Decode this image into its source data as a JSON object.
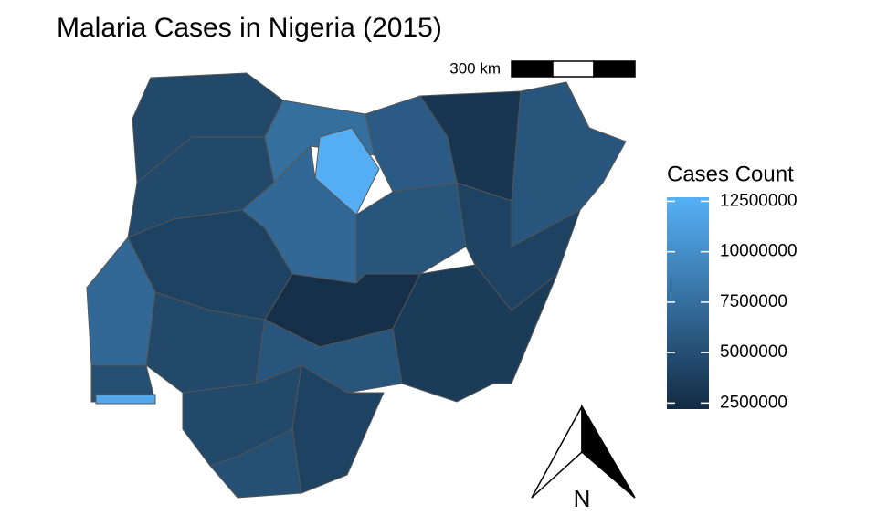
{
  "chart_data": {
    "type": "choropleth",
    "title": "Malaria Cases in Nigeria (2015)",
    "legend_title": "Cases Count",
    "legend_lim": [
      2200000,
      12700000
    ],
    "legend_ticks": [
      2500000,
      5000000,
      7500000,
      10000000,
      12500000
    ],
    "colors": {
      "low": "#132B43",
      "high": "#56B1F7"
    },
    "values": [
      4500000,
      7500000,
      12500000,
      6000000,
      3000000,
      5500000,
      4500000,
      7000000,
      5500000,
      4000000,
      4000000,
      7000000,
      2600000,
      3500000,
      4500000,
      5000000,
      12000000,
      5500000,
      4500000,
      4000000,
      5000000
    ],
    "scale_bar_label": "300 km",
    "north_label": "N"
  }
}
